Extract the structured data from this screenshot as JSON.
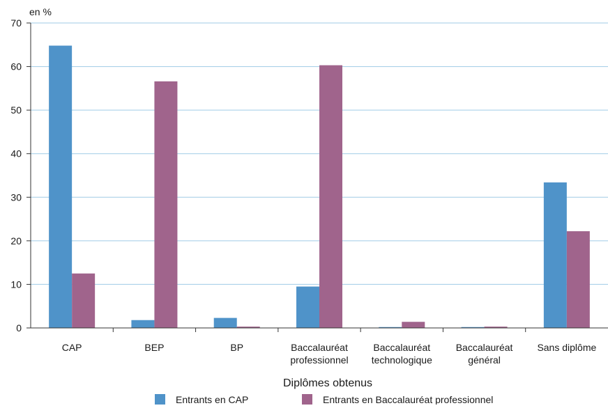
{
  "chart_data": {
    "type": "bar",
    "title": "",
    "unit_label": "en %",
    "xlabel": "Diplômes obtenus",
    "ylabel": "",
    "ylim": [
      0,
      70
    ],
    "yticks": [
      0,
      10,
      20,
      30,
      40,
      50,
      60,
      70
    ],
    "grid": true,
    "legend_position": "bottom",
    "categories": [
      [
        "CAP"
      ],
      [
        "BEP"
      ],
      [
        "BP"
      ],
      [
        "Baccalauréat",
        "professionnel"
      ],
      [
        "Baccalauréat",
        "technologique"
      ],
      [
        "Baccalauréat",
        "général"
      ],
      [
        "Sans diplôme"
      ]
    ],
    "series": [
      {
        "name": "Entrants en CAP",
        "color": "#4f93c9",
        "values": [
          64.8,
          1.8,
          2.3,
          9.5,
          0.2,
          0.2,
          33.4
        ]
      },
      {
        "name": "Entrants en Baccalauréat professionnel",
        "color": "#a0648c",
        "values": [
          12.5,
          56.6,
          0.3,
          60.3,
          1.4,
          0.3,
          22.2
        ]
      }
    ]
  }
}
